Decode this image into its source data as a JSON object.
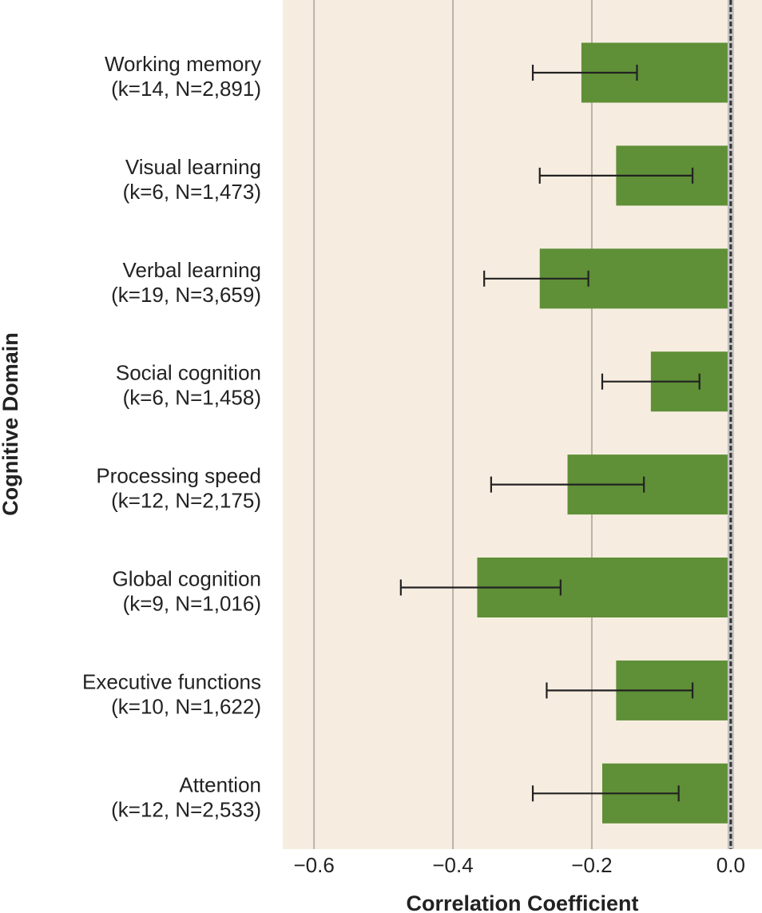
{
  "chart_data": {
    "type": "bar",
    "orientation": "horizontal",
    "title": "",
    "xlabel": "Correlation Coefficient",
    "ylabel": "Cognitive Domain",
    "xlim": [
      -0.645,
      0.045
    ],
    "xticks": [
      -0.6,
      -0.4,
      -0.2,
      0.0
    ],
    "xtick_labels": [
      "−0.6",
      "−0.4",
      "−0.2",
      "0.0"
    ],
    "grid": "vertical",
    "reference_line": 0.0,
    "categories": [
      {
        "name": "Working memory",
        "detail": "(k=14, N=2,891)"
      },
      {
        "name": "Visual learning",
        "detail": "(k=6, N=1,473)"
      },
      {
        "name": "Verbal learning",
        "detail": "(k=19, N=3,659)"
      },
      {
        "name": "Social cognition",
        "detail": "(k=6, N=1,458)"
      },
      {
        "name": "Processing speed",
        "detail": "(k=12, N=2,175)"
      },
      {
        "name": "Global cognition",
        "detail": "(k=9, N=1,016)"
      },
      {
        "name": "Executive functions",
        "detail": "(k=10, N=1,622)"
      },
      {
        "name": "Attention",
        "detail": "(k=12, N=2,533)"
      }
    ],
    "values": [
      -0.215,
      -0.165,
      -0.275,
      -0.115,
      -0.235,
      -0.365,
      -0.165,
      -0.185
    ],
    "ci_lower": [
      -0.285,
      -0.275,
      -0.355,
      -0.185,
      -0.345,
      -0.475,
      -0.265,
      -0.285
    ],
    "ci_upper": [
      -0.135,
      -0.055,
      -0.205,
      -0.045,
      -0.125,
      -0.245,
      -0.055,
      -0.075
    ],
    "colors": {
      "bar": "#5f8f37",
      "plot_bg": "#f6ede0",
      "grid": "#b9b3ab",
      "error_bar": "#222222",
      "zero_band": "#c2c2c2",
      "zero_line": "#333333"
    }
  }
}
